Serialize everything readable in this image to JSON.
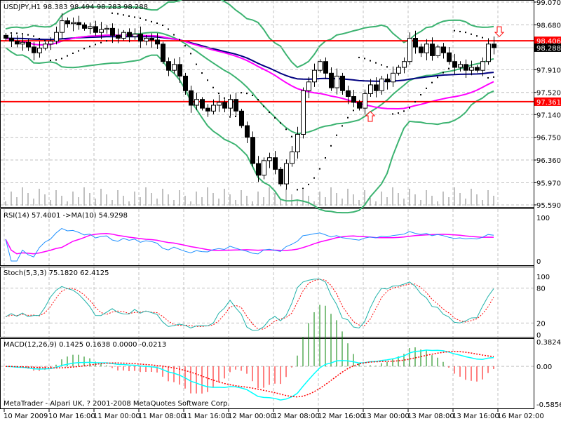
{
  "chart_data": {
    "type": "candlestick",
    "symbol_header": "USDJPY,H1  98.383 98.494 98.283 98.288",
    "price_axis_ticks": [
      "99.070",
      "98.680",
      "97.910",
      "97.520",
      "97.140",
      "96.750",
      "96.360",
      "95.970",
      "95.590"
    ],
    "ylim": [
      95.59,
      99.07
    ],
    "time_labels": [
      "10 Mar 2009",
      "10 Mar 16:00",
      "11 Mar 00:00",
      "11 Mar 08:00",
      "11 Mar 16:00",
      "12 Mar 00:00",
      "12 Mar 08:00",
      "12 Mar 16:00",
      "13 Mar 00:00",
      "13 Mar 08:00",
      "13 Mar 16:00",
      "16 Mar 02:00"
    ],
    "bars_per_label": 8,
    "close": [
      98.45,
      98.4,
      98.35,
      98.38,
      98.3,
      98.2,
      98.28,
      98.35,
      98.4,
      98.55,
      98.75,
      98.7,
      98.72,
      98.68,
      98.62,
      98.65,
      98.55,
      98.6,
      98.62,
      98.5,
      98.45,
      98.55,
      98.48,
      98.52,
      98.4,
      98.45,
      98.42,
      98.35,
      98.05,
      97.9,
      98.0,
      97.8,
      97.55,
      97.3,
      97.4,
      97.25,
      97.2,
      97.3,
      97.35,
      97.25,
      97.4,
      97.2,
      96.95,
      96.75,
      96.3,
      96.1,
      96.35,
      96.4,
      96.2,
      95.95,
      96.3,
      96.5,
      96.8,
      97.55,
      97.7,
      97.9,
      98.05,
      97.85,
      97.6,
      97.8,
      97.55,
      97.45,
      97.35,
      97.25,
      97.5,
      97.65,
      97.55,
      97.75,
      97.7,
      97.85,
      97.95,
      98.05,
      98.45,
      98.3,
      98.2,
      98.35,
      98.15,
      98.3,
      98.2,
      98.05,
      97.95,
      98.0,
      97.9,
      97.95,
      97.9,
      98.05,
      98.35,
      98.288
    ],
    "horizontal_lines": [
      {
        "price": 98.406,
        "label": "98.406",
        "color": "#ff0000"
      },
      {
        "price": 97.361,
        "label": "97.361",
        "color": "#ff0000"
      }
    ],
    "current_price": {
      "price": 98.288,
      "label": "98.288"
    },
    "arrows": [
      {
        "direction": "down",
        "bar": 89,
        "price": 98.55
      },
      {
        "direction": "up",
        "bar": 66,
        "price": 97.12
      }
    ],
    "rsi": {
      "label": "RSI(14) 57.4001  ->MA(10) 54.9298",
      "ticks": [
        "100",
        "0"
      ]
    },
    "stoch": {
      "label": "Stoch(5,3,3) 75.1820 62.4125",
      "ticks": [
        "100",
        "80",
        "20",
        "0"
      ]
    },
    "macd": {
      "label": "MACD(12,26,9) 0.1425 0.1638 0.0000 -0.0213",
      "ticks": [
        "0.3824",
        "0.00",
        "-0.5856"
      ],
      "ylim": [
        -0.5856,
        0.3824
      ]
    },
    "colors": {
      "bands": "#3cb371",
      "ma_slow": "#000080",
      "ma_fast": "#ff00ff",
      "rsi": "#1e90ff",
      "stoch_main": "#20b2aa",
      "signal": "#ff0000",
      "macd_main": "#00ffff",
      "hist_up": "#008000",
      "hist_down": "#ff0000"
    }
  },
  "footer": {
    "copyright": "MetaTrader - Alpari UK, ? 2001-2008 MetaQuotes Software Corp."
  }
}
